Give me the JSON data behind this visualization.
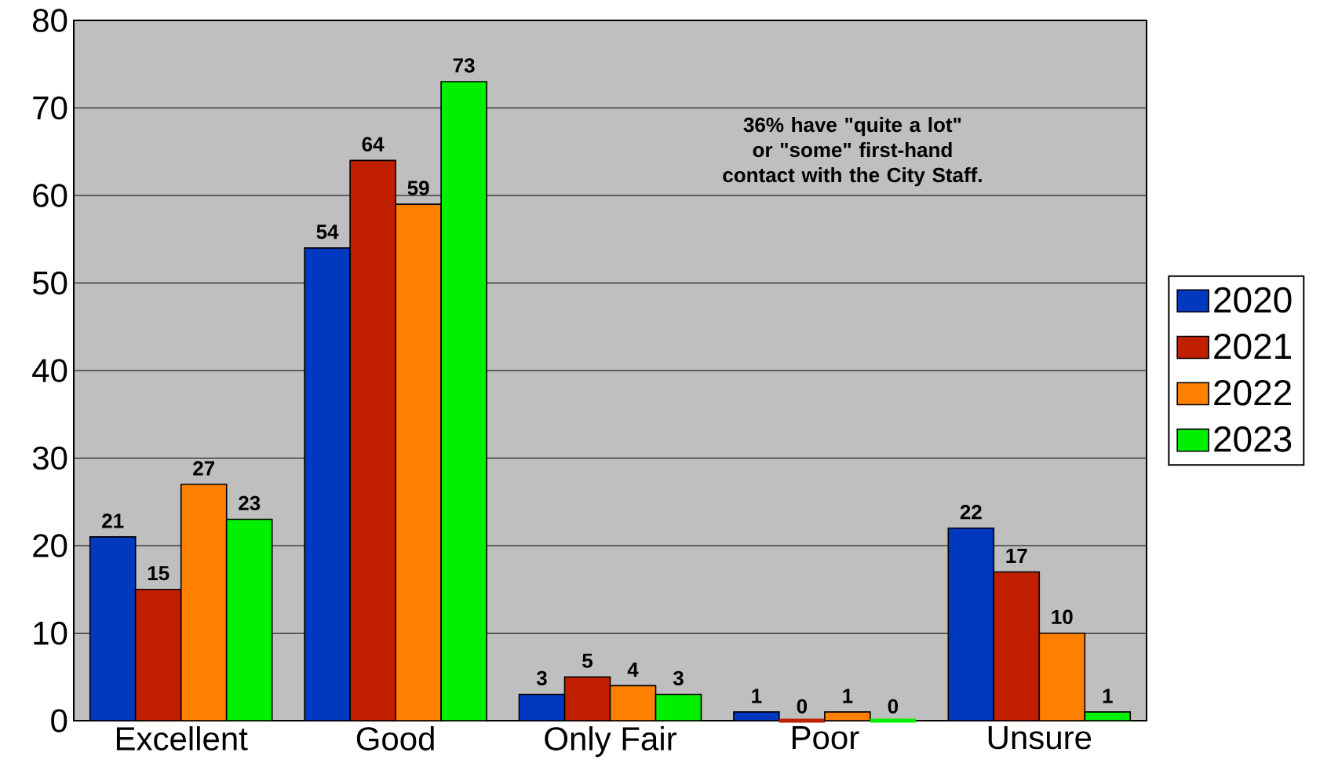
{
  "chart_data": {
    "type": "bar",
    "categories": [
      "Excellent",
      "Good",
      "Only Fair",
      "Poor",
      "Unsure"
    ],
    "series": [
      {
        "name": "2020",
        "color": "#0038c0",
        "values": [
          21,
          54,
          3,
          1,
          22
        ]
      },
      {
        "name": "2021",
        "color": "#c02000",
        "values": [
          15,
          64,
          5,
          0,
          17
        ]
      },
      {
        "name": "2022",
        "color": "#ff8000",
        "values": [
          27,
          59,
          4,
          1,
          10
        ]
      },
      {
        "name": "2023",
        "color": "#00f000",
        "values": [
          23,
          73,
          3,
          0,
          1
        ]
      }
    ],
    "ylim": [
      0,
      80
    ],
    "yticks": [
      0,
      10,
      20,
      30,
      40,
      50,
      60,
      70,
      80
    ],
    "grid": "y",
    "legend": "right",
    "data_labels": true,
    "annotations": [
      "36% have \"quite a lot\" or \"some\" first-hand contact with the City Staff."
    ]
  }
}
